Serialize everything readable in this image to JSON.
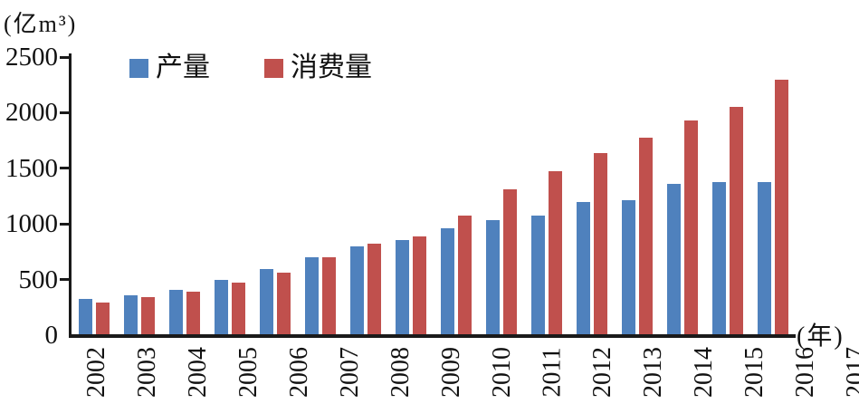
{
  "chart_data": {
    "type": "bar",
    "title": "",
    "y_axis_unit": "(亿m³)",
    "x_axis_unit": "(年)",
    "categories": [
      "2002",
      "2003",
      "2004",
      "2005",
      "2006",
      "2007",
      "2008",
      "2009",
      "2010",
      "2011",
      "2012",
      "2013",
      "2014",
      "2015",
      "2016",
      "2017"
    ],
    "series": [
      {
        "key": "production",
        "name": "产量",
        "color": "#4F81BD",
        "values": [
          320,
          350,
          400,
          490,
          590,
          690,
          790,
          845,
          950,
          1030,
          1070,
          1185,
          1205,
          1355,
          1370,
          1370
        ]
      },
      {
        "key": "consumption",
        "name": "消费量",
        "color": "#C0504D",
        "values": [
          285,
          330,
          385,
          465,
          555,
          690,
          815,
          880,
          1065,
          1300,
          1465,
          1630,
          1770,
          1925,
          2045,
          2285
        ]
      }
    ],
    "y_ticks": [
      0,
      500,
      1000,
      1500,
      2000,
      2500
    ],
    "ylim": [
      0,
      2500
    ],
    "grid": false,
    "legend_position": "top-inside",
    "axis_color": "#1a1a1a",
    "background_color": "#ffffff"
  }
}
